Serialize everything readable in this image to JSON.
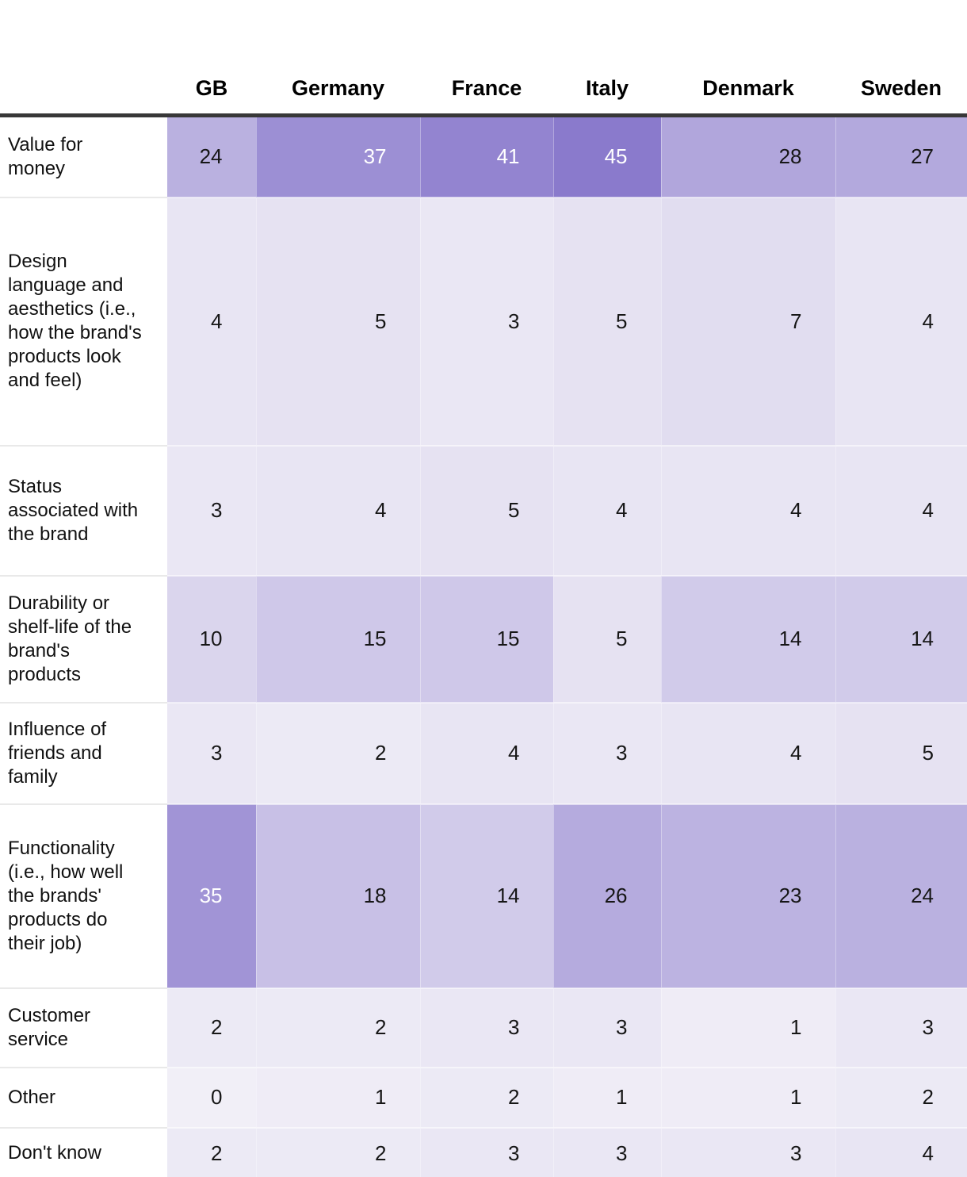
{
  "chart_data": {
    "type": "heatmap",
    "columns": [
      "GB",
      "Germany",
      "France",
      "Italy",
      "Denmark",
      "Sweden"
    ],
    "rows": [
      {
        "label": "Value for money",
        "values": [
          24,
          37,
          41,
          45,
          28,
          27
        ]
      },
      {
        "label": "Design language and aesthetics (i.e., how the brand's products look and feel)",
        "values": [
          4,
          5,
          3,
          5,
          7,
          4
        ]
      },
      {
        "label": "Status associated with the brand",
        "values": [
          3,
          4,
          5,
          4,
          4,
          4
        ]
      },
      {
        "label": "Durability or shelf-life of the brand's products",
        "values": [
          10,
          15,
          15,
          5,
          14,
          14
        ]
      },
      {
        "label": "Influence of friends and family",
        "values": [
          3,
          2,
          4,
          3,
          4,
          5
        ]
      },
      {
        "label": "Functionality (i.e., how well the brands' products do their job)",
        "values": [
          35,
          18,
          14,
          26,
          23,
          24
        ]
      },
      {
        "label": "Customer service",
        "values": [
          2,
          2,
          3,
          3,
          1,
          3
        ]
      },
      {
        "label": "Other",
        "values": [
          0,
          1,
          2,
          1,
          1,
          2
        ]
      },
      {
        "label": "Don't know",
        "values": [
          2,
          2,
          3,
          3,
          3,
          4
        ]
      }
    ],
    "value_range": [
      0,
      45
    ],
    "color_scale": {
      "min_color": "#f1eff7",
      "max_color": "#8a7acc",
      "white_text_threshold": 30
    },
    "text_colors": {
      "dark": "#161616",
      "light": "#ffffff"
    },
    "header_rule_color": "#383838",
    "grid": "off",
    "legend": "none"
  }
}
